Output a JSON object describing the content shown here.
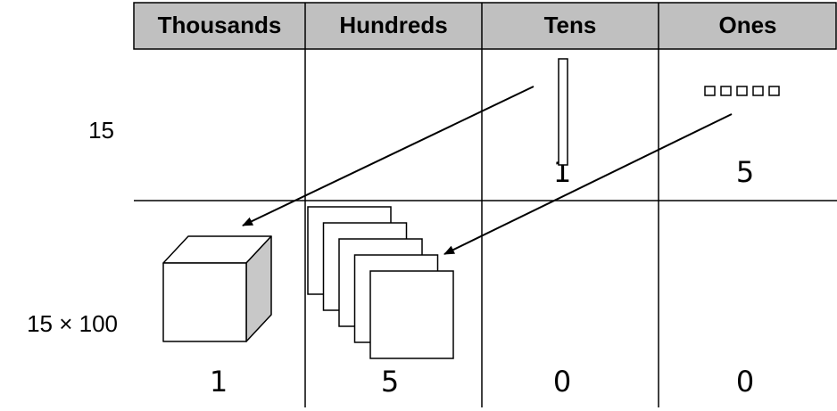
{
  "header": {
    "columns": [
      "Thousands",
      "Hundreds",
      "Tens",
      "Ones"
    ]
  },
  "rows": [
    {
      "label": "15",
      "tens": 1,
      "ones": 5
    },
    {
      "label": "15 × 100",
      "thousands": 1,
      "hundreds": 5,
      "tens": 0,
      "ones": 0
    }
  ]
}
